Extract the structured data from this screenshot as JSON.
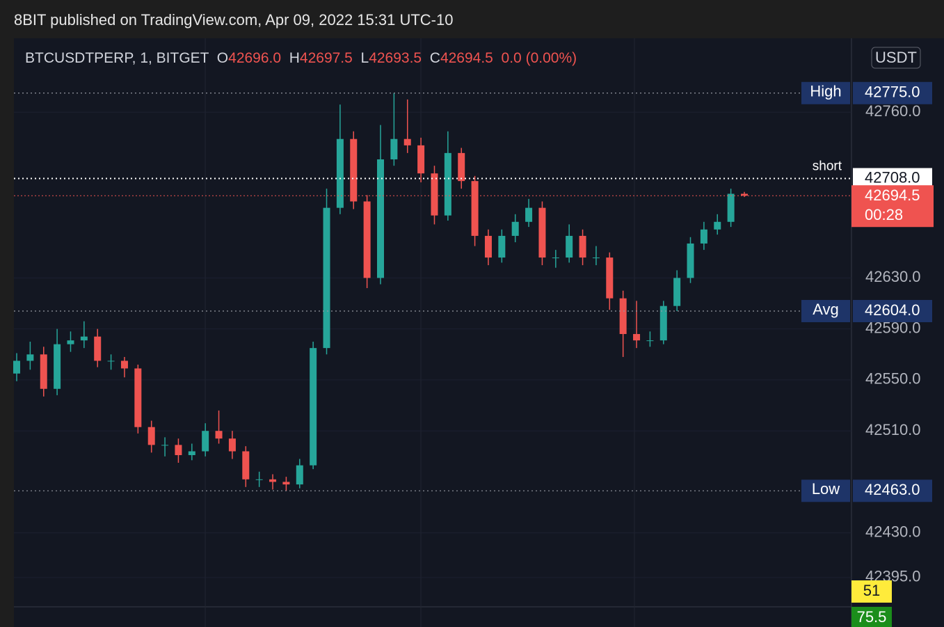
{
  "header": "8BIT published on TradingView.com, Apr 09, 2022 15:31 UTC-10",
  "symbol": {
    "name": "BTCUSDTPERP, 1, BITGET",
    "o_label": "O",
    "o": "42696.0",
    "h_label": "H",
    "h": "42697.5",
    "l_label": "L",
    "l": "42693.5",
    "c_label": "C",
    "c": "42694.5",
    "change": "0.0 (0.00%)"
  },
  "chart_data": {
    "type": "candlestick",
    "up_color": "#26a69a",
    "down_color": "#ef5350",
    "open": [
      42555,
      42565,
      42570,
      42543,
      42578,
      42581,
      42584,
      42565,
      42565,
      42559,
      42513,
      42499,
      42499,
      42491,
      42494,
      42510,
      42504,
      42494,
      42472,
      42472,
      42470,
      42468,
      42483,
      42575,
      42685,
      42739,
      42690,
      42630,
      42723,
      42739,
      42734,
      42712,
      42679,
      42728,
      42706,
      42663,
      42646,
      42663,
      42674,
      42685,
      42646,
      42646,
      42663,
      42646,
      42646,
      42614,
      42586,
      42581,
      42581,
      42608,
      42630,
      42657,
      42668,
      42674,
      42696
    ],
    "high": [
      42571,
      42580,
      42576,
      42590,
      42588,
      42596,
      42590,
      42570,
      42568,
      42562,
      42518,
      42505,
      42504,
      42500,
      42516,
      42526,
      42510,
      42498,
      42478,
      42476,
      42474,
      42488,
      42580,
      42700,
      42766,
      42745,
      42695,
      42750,
      42775,
      42770,
      42740,
      42718,
      42745,
      42732,
      42710,
      42668,
      42668,
      42680,
      42692,
      42690,
      42652,
      42672,
      42668,
      42655,
      42650,
      42620,
      42612,
      42588,
      42612,
      42636,
      42662,
      42674,
      42680,
      42700,
      42697.5
    ],
    "low": [
      42549,
      42558,
      42537,
      42538,
      42572,
      42575,
      42560,
      42558,
      42552,
      42508,
      42493,
      42490,
      42485,
      42487,
      42490,
      42500,
      42488,
      42466,
      42466,
      42464,
      42463,
      42465,
      42480,
      42570,
      42680,
      42684,
      42622,
      42625,
      42718,
      42728,
      42705,
      42672,
      42675,
      42700,
      42655,
      42640,
      42642,
      42658,
      42670,
      42640,
      42638,
      42642,
      42640,
      42640,
      42605,
      42568,
      42575,
      42576,
      42578,
      42604,
      42626,
      42652,
      42664,
      42670,
      42693.5
    ],
    "close": [
      42565,
      42570,
      42543,
      42578,
      42581,
      42584,
      42565,
      42565,
      42559,
      42513,
      42499,
      42499,
      42491,
      42494,
      42510,
      42504,
      42494,
      42472,
      42472,
      42470,
      42468,
      42483,
      42575,
      42685,
      42739,
      42690,
      42630,
      42723,
      42739,
      42734,
      42712,
      42679,
      42728,
      42706,
      42663,
      42646,
      42663,
      42674,
      42685,
      42646,
      42646,
      42663,
      42646,
      42646,
      42614,
      42586,
      42581,
      42581,
      42608,
      42630,
      42657,
      42668,
      42674,
      42696,
      42694.5
    ],
    "ylim": [
      42372,
      42818
    ],
    "yticks": [
      {
        "value": 42760,
        "label": "42760.0"
      },
      {
        "value": 42630,
        "label": "42630.0"
      },
      {
        "value": 42590,
        "label": "42590.0"
      },
      {
        "value": 42550,
        "label": "42550.0"
      },
      {
        "value": 42510,
        "label": "42510.0"
      },
      {
        "value": 42430,
        "label": "42430.0"
      },
      {
        "value": 42395,
        "label": "42395.0"
      }
    ],
    "levels": [
      {
        "name": "High",
        "value": 42775,
        "label": "42775.0"
      },
      {
        "name": "short",
        "value": 42708,
        "label": "42708.0"
      },
      {
        "name": "Avg",
        "value": 42604,
        "label": "42604.0"
      },
      {
        "name": "Low",
        "value": 42463,
        "label": "42463.0"
      }
    ],
    "last": {
      "value": 42694.5,
      "label": "42694.5",
      "countdown": "00:28"
    },
    "currency": "USDT",
    "indicators": [
      "51",
      "75.5"
    ]
  }
}
